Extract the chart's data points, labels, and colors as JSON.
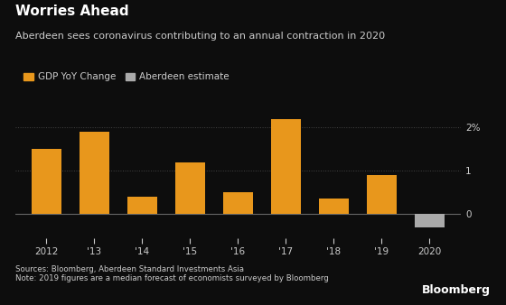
{
  "categories": [
    "2012",
    "'13",
    "'14",
    "'15",
    "'16",
    "'17",
    "'18",
    "'19",
    "2020"
  ],
  "values": [
    1.5,
    1.9,
    0.4,
    1.2,
    0.5,
    2.2,
    0.35,
    0.9,
    -0.3
  ],
  "bar_colors": [
    "#E8971C",
    "#E8971C",
    "#E8971C",
    "#E8971C",
    "#E8971C",
    "#E8971C",
    "#E8971C",
    "#E8971C",
    "#AAAAAA"
  ],
  "background_color": "#0D0D0D",
  "title_bold": "Worries Ahead",
  "title_sub": "Aberdeen sees coronavirus contributing to an annual contraction in 2020",
  "legend_labels": [
    "GDP YoY Change",
    "Aberdeen estimate"
  ],
  "legend_colors": [
    "#E8971C",
    "#AAAAAA"
  ],
  "ylabel_ticks": [
    0,
    1,
    2
  ],
  "ylabel_labels": [
    "0",
    "1",
    "2%"
  ],
  "ylim": [
    -0.55,
    2.55
  ],
  "source_text": "Sources: Bloomberg, Aberdeen Standard Investments Asia\nNote: 2019 figures are a median forecast of economists surveyed by Bloomberg",
  "bloomberg_text": "Bloomberg",
  "grid_color": "#444444",
  "text_color": "#CCCCCC",
  "axis_color": "#666666",
  "title_color": "#FFFFFF",
  "title_fontsize": 11,
  "subtitle_fontsize": 8,
  "legend_fontsize": 7.5,
  "tick_fontsize": 7.5,
  "source_fontsize": 6.2,
  "bloomberg_fontsize": 9
}
